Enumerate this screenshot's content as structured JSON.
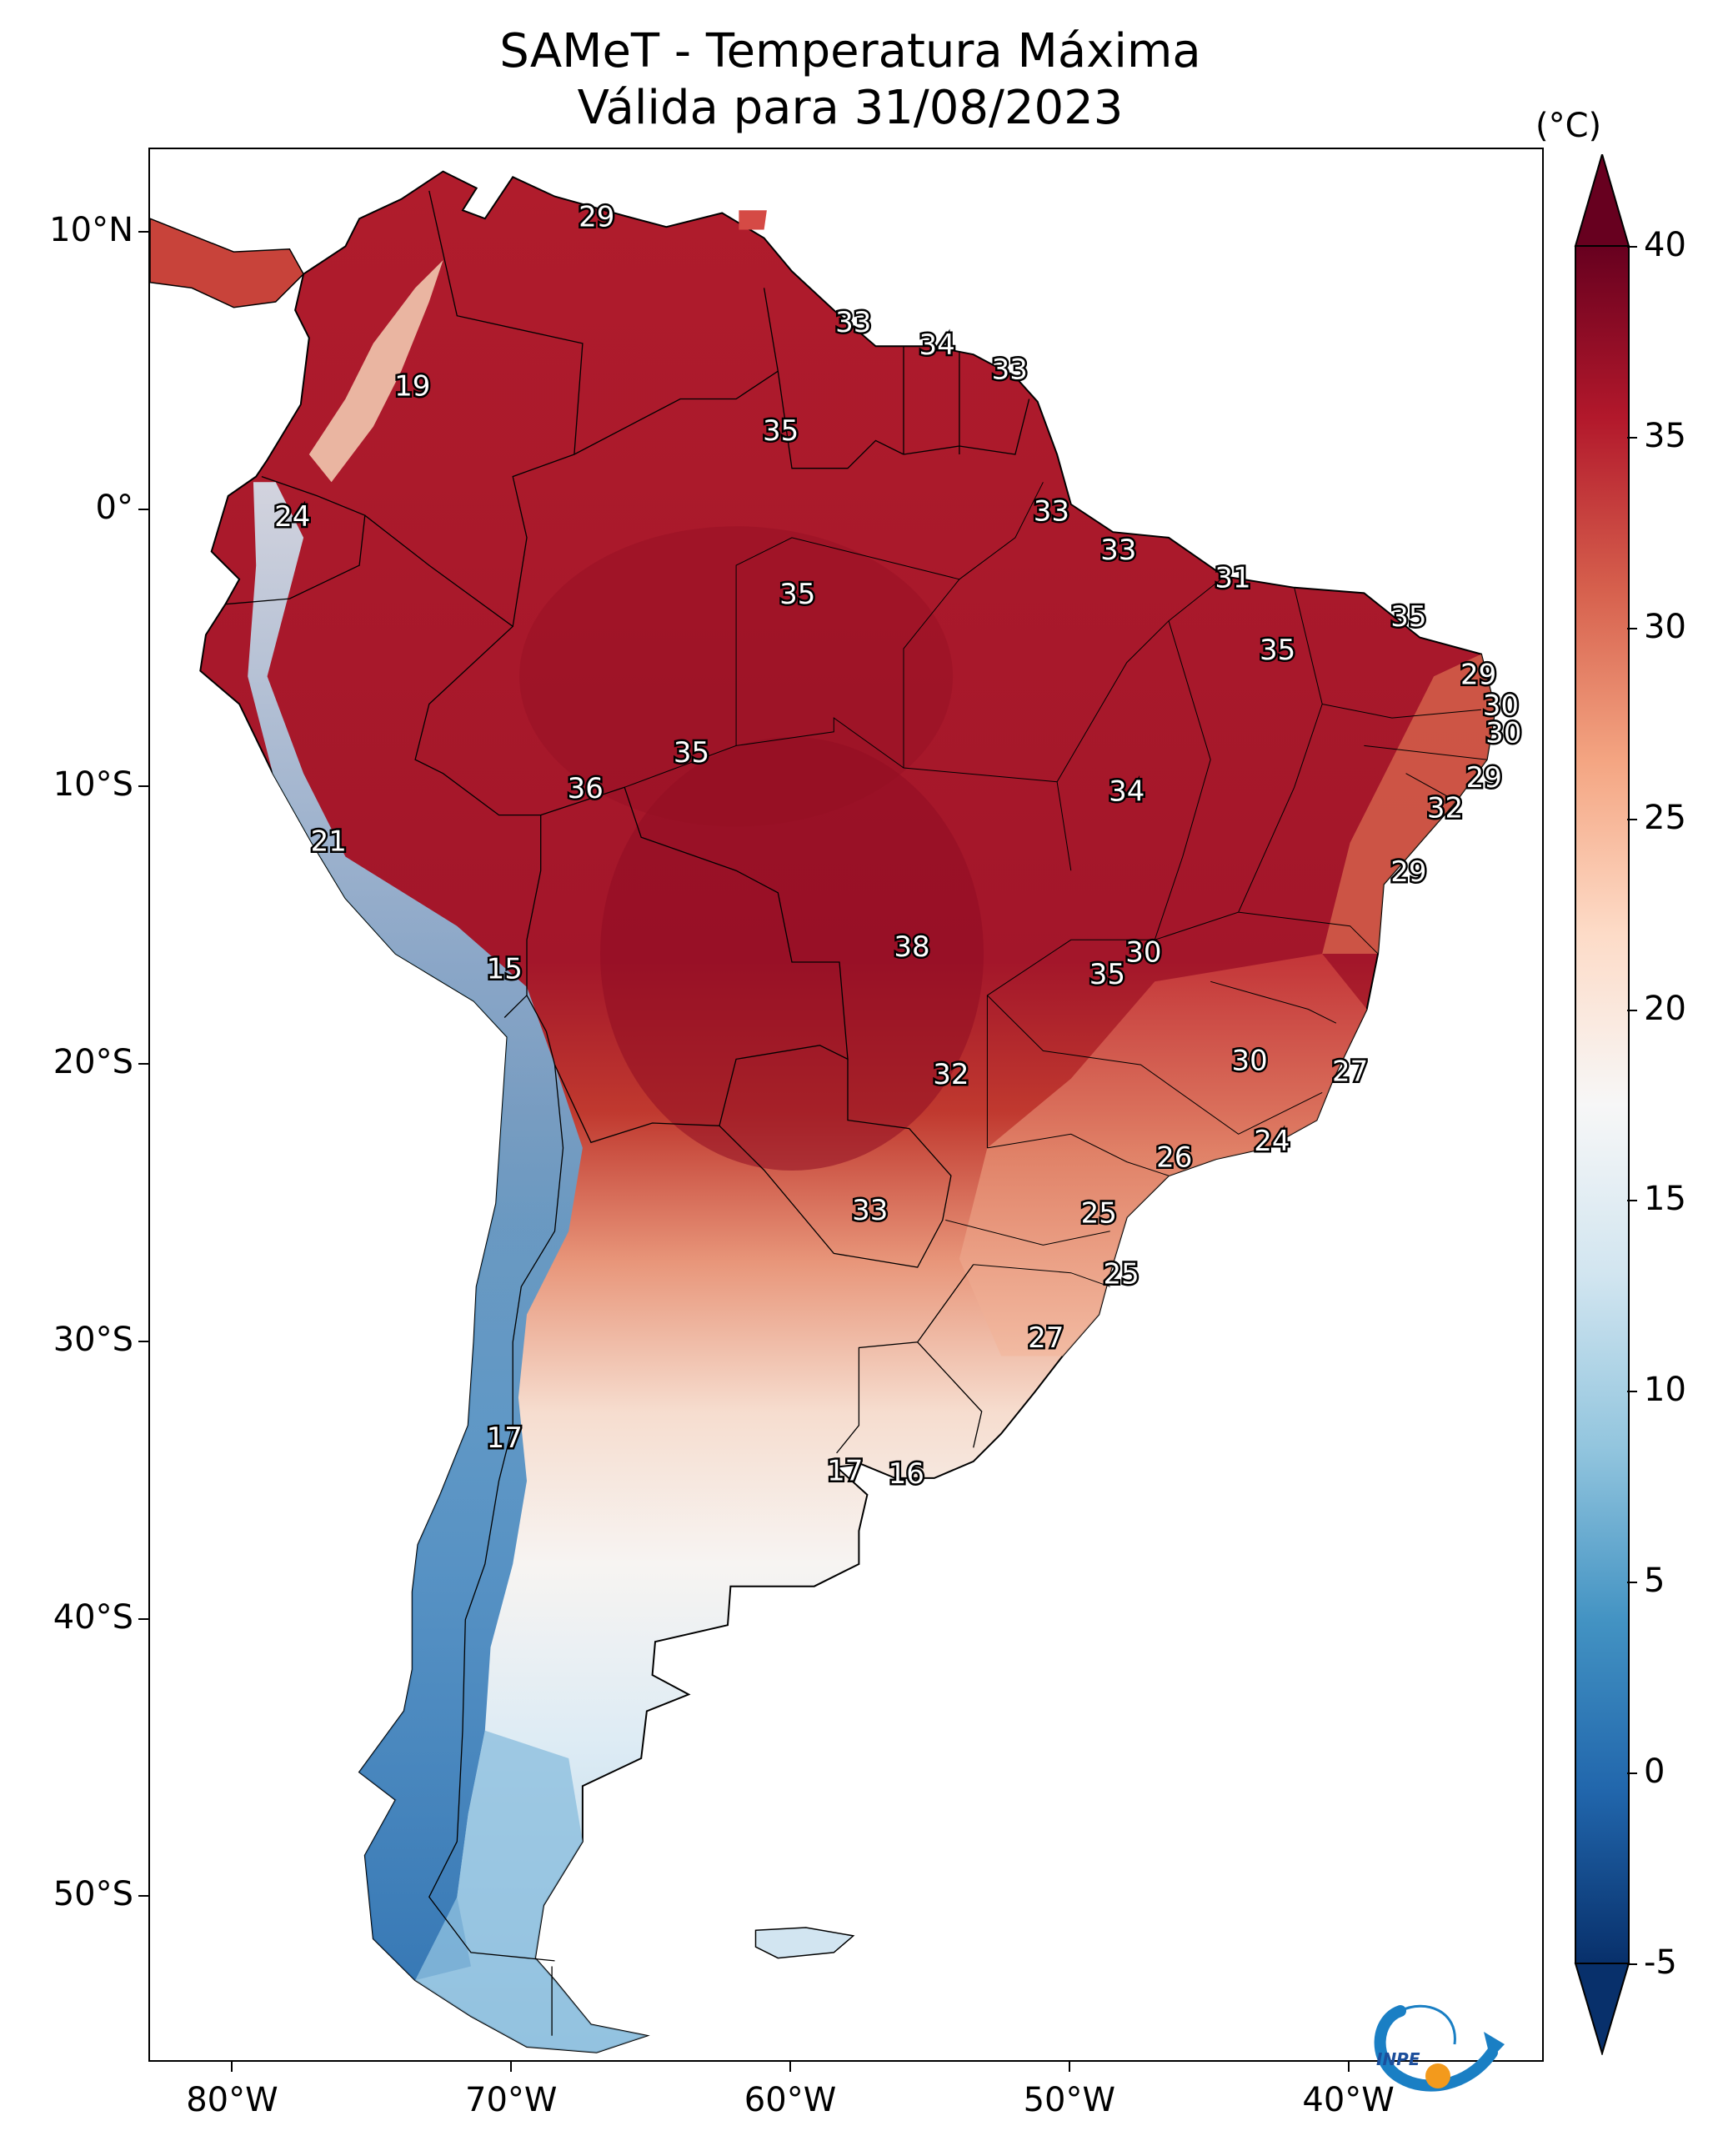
{
  "title": {
    "line1": "SAMeT - Temperatura Máxima",
    "line2": "Válida para 31/08/2023"
  },
  "axes": {
    "lon_ticks": [
      {
        "label": "80°W",
        "lon": -80
      },
      {
        "label": "70°W",
        "lon": -70
      },
      {
        "label": "60°W",
        "lon": -60
      },
      {
        "label": "50°W",
        "lon": -50
      },
      {
        "label": "40°W",
        "lon": -40
      }
    ],
    "lat_ticks": [
      {
        "label": "10°N",
        "lat": 10
      },
      {
        "label": "0°",
        "lat": 0
      },
      {
        "label": "10°S",
        "lat": -10
      },
      {
        "label": "20°S",
        "lat": -20
      },
      {
        "label": "30°S",
        "lat": -30
      },
      {
        "label": "40°S",
        "lat": -40
      },
      {
        "label": "50°S",
        "lat": -50
      }
    ],
    "extent": {
      "lon_min": -83,
      "lon_max": -33,
      "lat_min": -56,
      "lat_max": 13
    }
  },
  "colorbar": {
    "unit": "(°C)",
    "range": [
      -5,
      40
    ],
    "ticks": [
      {
        "label": "40",
        "value": 40
      },
      {
        "label": "35",
        "value": 35
      },
      {
        "label": "30",
        "value": 30
      },
      {
        "label": "25",
        "value": 25
      },
      {
        "label": "20",
        "value": 20
      },
      {
        "label": "15",
        "value": 15
      },
      {
        "label": "10",
        "value": 10
      },
      {
        "label": "5",
        "value": 5
      },
      {
        "label": "0",
        "value": 0
      },
      {
        "label": "-5",
        "value": -5
      }
    ],
    "colors": [
      "#08306b",
      "#2166ac",
      "#4393c3",
      "#92c5de",
      "#d1e5f0",
      "#f7f7f7",
      "#fddbc7",
      "#f4a582",
      "#d6604d",
      "#b2182b",
      "#67001f"
    ]
  },
  "regions": [
    {
      "name": "north",
      "color": "#b3202d"
    },
    {
      "name": "center",
      "color": "#9e1424"
    },
    {
      "name": "south-east",
      "color": "#e58e73"
    },
    {
      "name": "south",
      "color": "#f6d8c8"
    },
    {
      "name": "andes",
      "color": "#6ea7d0"
    },
    {
      "name": "patagonia",
      "color": "#d4e6f1"
    }
  ],
  "point_labels": [
    {
      "text": "29",
      "lon": -67.0,
      "lat": 10.5
    },
    {
      "text": "19",
      "lon": -73.6,
      "lat": 4.4
    },
    {
      "text": "33",
      "lon": -57.8,
      "lat": 6.7
    },
    {
      "text": "34",
      "lon": -54.8,
      "lat": 5.9
    },
    {
      "text": "33",
      "lon": -52.2,
      "lat": 5.0
    },
    {
      "text": "35",
      "lon": -60.4,
      "lat": 2.8
    },
    {
      "text": "24",
      "lon": -77.9,
      "lat": -0.3
    },
    {
      "text": "33",
      "lon": -50.7,
      "lat": -0.1
    },
    {
      "text": "33",
      "lon": -48.3,
      "lat": -1.5
    },
    {
      "text": "31",
      "lon": -44.2,
      "lat": -2.5
    },
    {
      "text": "35",
      "lon": -59.8,
      "lat": -3.1
    },
    {
      "text": "35",
      "lon": -37.9,
      "lat": -3.9
    },
    {
      "text": "35",
      "lon": -42.6,
      "lat": -5.1
    },
    {
      "text": "29",
      "lon": -35.4,
      "lat": -6.0
    },
    {
      "text": "30",
      "lon": -34.6,
      "lat": -7.1
    },
    {
      "text": "30",
      "lon": -34.5,
      "lat": -8.1
    },
    {
      "text": "35",
      "lon": -63.6,
      "lat": -8.8
    },
    {
      "text": "36",
      "lon": -67.4,
      "lat": -10.1
    },
    {
      "text": "29",
      "lon": -35.2,
      "lat": -9.7
    },
    {
      "text": "34",
      "lon": -48.0,
      "lat": -10.2
    },
    {
      "text": "32",
      "lon": -36.6,
      "lat": -10.8
    },
    {
      "text": "21",
      "lon": -76.6,
      "lat": -12.0
    },
    {
      "text": "29",
      "lon": -37.9,
      "lat": -13.1
    },
    {
      "text": "38",
      "lon": -55.7,
      "lat": -15.8
    },
    {
      "text": "30",
      "lon": -47.4,
      "lat": -16.0
    },
    {
      "text": "35",
      "lon": -48.7,
      "lat": -16.8
    },
    {
      "text": "15",
      "lon": -70.3,
      "lat": -16.6
    },
    {
      "text": "30",
      "lon": -43.6,
      "lat": -19.9
    },
    {
      "text": "27",
      "lon": -40.0,
      "lat": -20.3
    },
    {
      "text": "32",
      "lon": -54.3,
      "lat": -20.4
    },
    {
      "text": "24",
      "lon": -42.8,
      "lat": -22.8
    },
    {
      "text": "26",
      "lon": -46.3,
      "lat": -23.4
    },
    {
      "text": "25",
      "lon": -49.0,
      "lat": -25.4
    },
    {
      "text": "33",
      "lon": -57.2,
      "lat": -25.3
    },
    {
      "text": "25",
      "lon": -48.2,
      "lat": -27.6
    },
    {
      "text": "27",
      "lon": -50.9,
      "lat": -29.9
    },
    {
      "text": "17",
      "lon": -70.3,
      "lat": -33.5
    },
    {
      "text": "17",
      "lon": -58.1,
      "lat": -34.7
    },
    {
      "text": "16",
      "lon": -55.9,
      "lat": -34.8
    }
  ],
  "logo": {
    "text": "INPE"
  }
}
